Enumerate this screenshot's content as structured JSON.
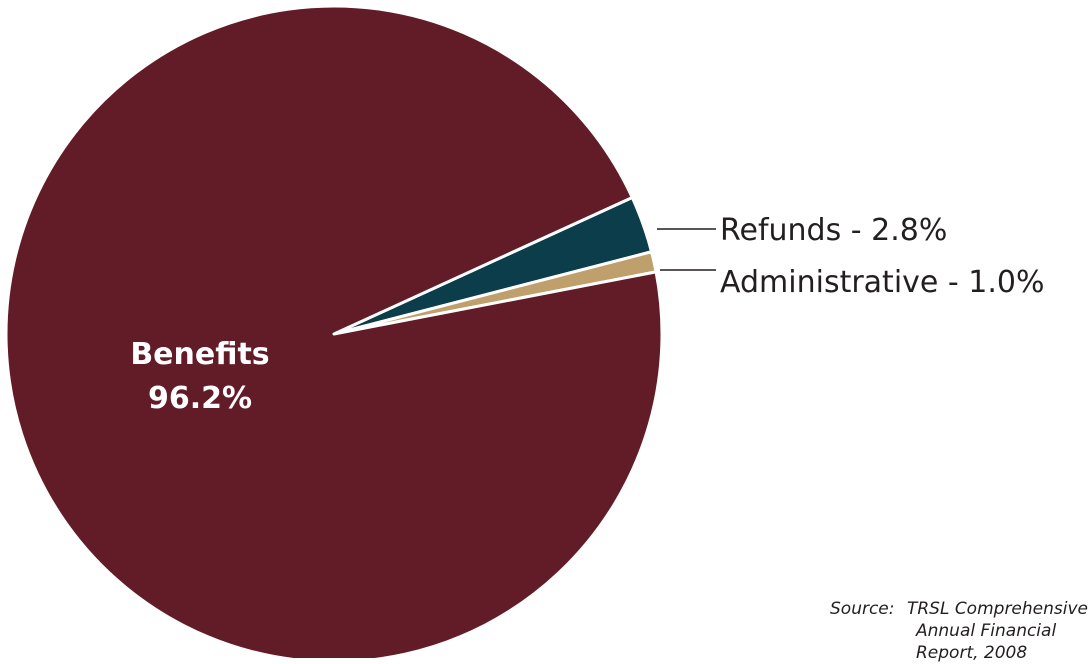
{
  "chart_data": {
    "type": "pie",
    "title": "",
    "slices": [
      {
        "label": "Benefits",
        "value": 96.2,
        "value_text": "96.2%",
        "color": "#621c28",
        "label_placement": "inside"
      },
      {
        "label": "Refunds",
        "value": 2.8,
        "value_text": "Refunds - 2.8%",
        "color": "#0b3d4b",
        "label_placement": "callout"
      },
      {
        "label": "Administrative",
        "value": 1.0,
        "value_text": "Administrative - 1.0%",
        "color": "#bfa06c",
        "label_placement": "callout"
      }
    ],
    "slice_border_color": "#ffffff",
    "legend": "none"
  },
  "source_note": {
    "prefix": "Source:",
    "line1": "TRSL Comprehensive",
    "line2": "Annual Financial",
    "line3": "Report, 2008"
  }
}
